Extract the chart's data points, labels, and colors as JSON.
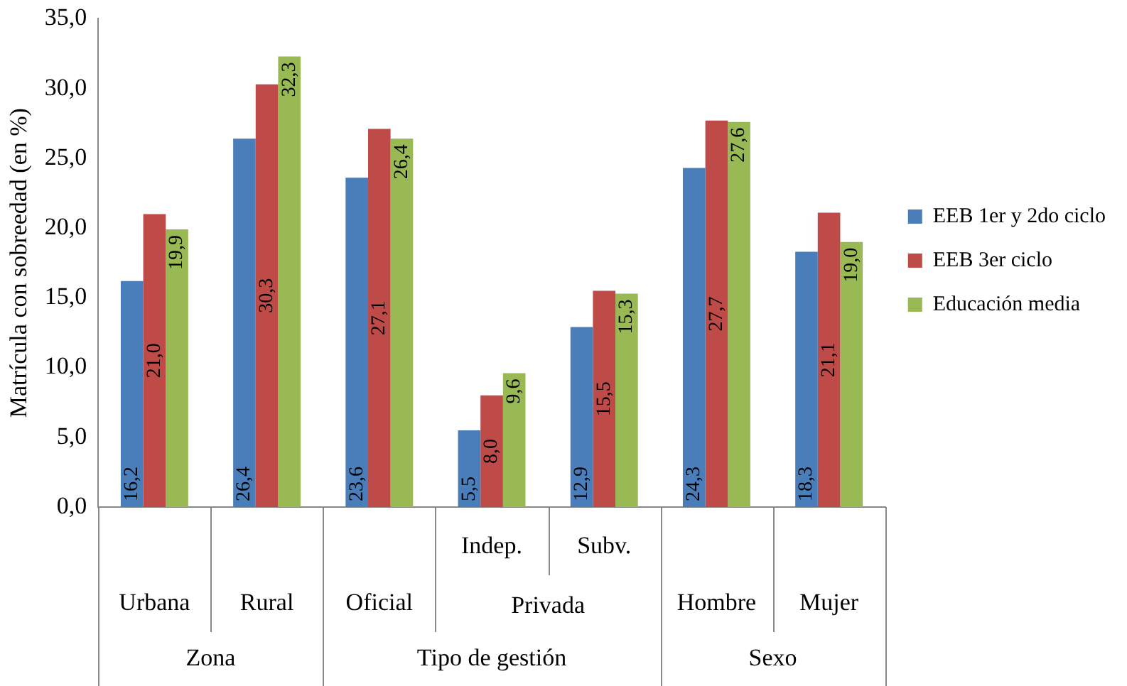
{
  "chart_data": {
    "type": "bar",
    "ylabel": "Matrícula con sobreedad (en %)",
    "categories": [
      "Urbana",
      "Rural",
      "Oficial",
      "Indep.",
      "Subv.",
      "Hombre",
      "Mujer"
    ],
    "series": [
      {
        "name": "EEB 1er y 2do ciclo",
        "color": "#4a7ebb",
        "values": [
          16.2,
          26.4,
          23.6,
          5.5,
          12.9,
          24.3,
          18.3
        ],
        "value_labels": [
          "16,2",
          "26,4",
          "23,6",
          "5,5",
          "12,9",
          "24,3",
          "18,3"
        ]
      },
      {
        "name": "EEB 3er ciclo",
        "color": "#be4b48",
        "values": [
          21.0,
          30.3,
          27.1,
          8.0,
          15.5,
          27.7,
          21.1
        ],
        "value_labels": [
          "21,0",
          "30,3",
          "27,1",
          "8,0",
          "15,5",
          "27,7",
          "21,1"
        ]
      },
      {
        "name": "Educación media",
        "color": "#98b954",
        "values": [
          19.9,
          32.3,
          26.4,
          9.6,
          15.3,
          27.6,
          19.0
        ],
        "value_labels": [
          "19,9",
          "32,3",
          "26,4",
          "9,6",
          "15,3",
          "27,6",
          "19,0"
        ]
      }
    ],
    "ylim": [
      0,
      35
    ],
    "yticks": [
      {
        "value": 0,
        "label": "0,0"
      },
      {
        "value": 5,
        "label": "5,0"
      },
      {
        "value": 10,
        "label": "10,0"
      },
      {
        "value": 15,
        "label": "15,0"
      },
      {
        "value": 20,
        "label": "20,0"
      },
      {
        "value": 25,
        "label": "25,0"
      },
      {
        "value": 30,
        "label": "30,0"
      },
      {
        "value": 35,
        "label": "35,0"
      }
    ],
    "grid": false,
    "legend": "right",
    "annotations": [
      "Privada",
      "Zona",
      "Tipo de gestión",
      "Sexo"
    ]
  }
}
